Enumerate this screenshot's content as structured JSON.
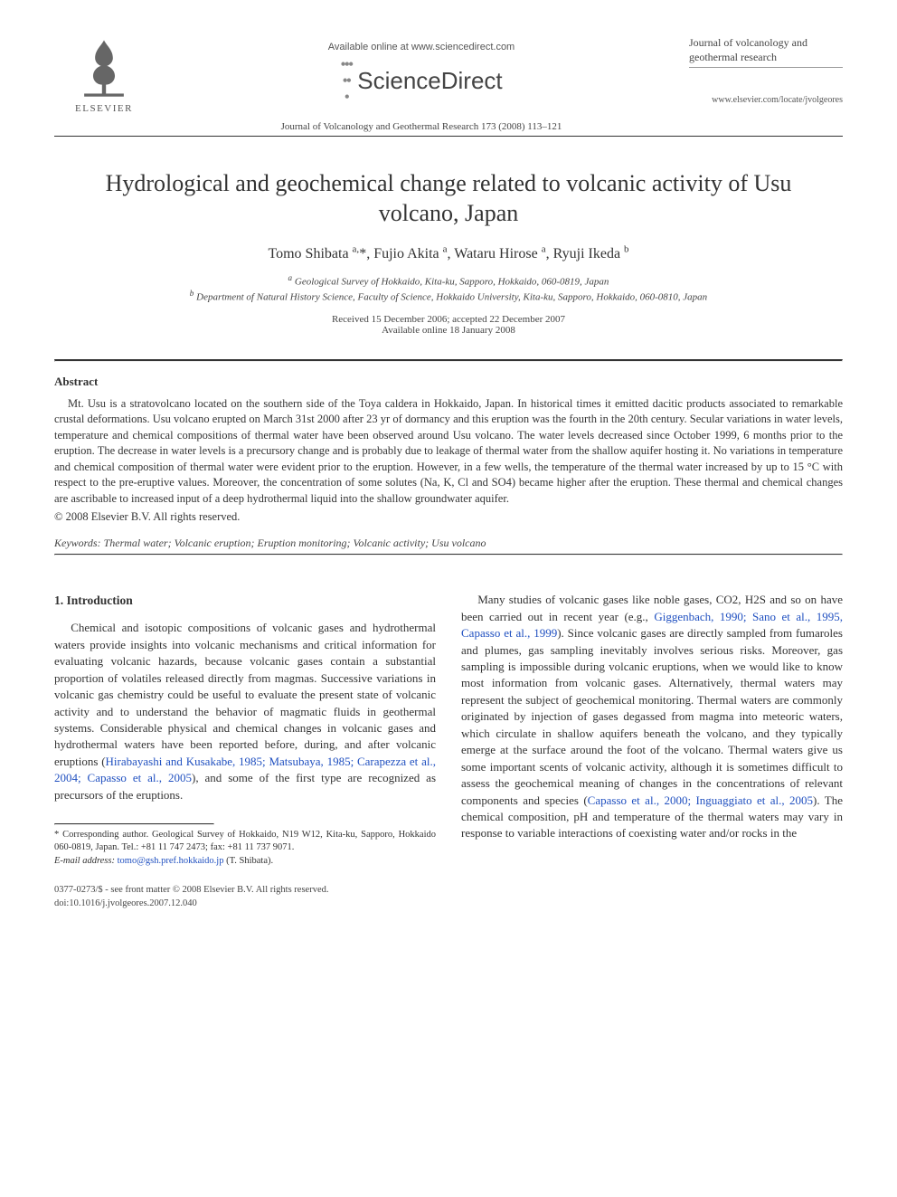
{
  "header": {
    "publisher": "ELSEVIER",
    "available_online": "Available online at www.sciencedirect.com",
    "sciencedirect": "ScienceDirect",
    "journal_ref": "Journal of Volcanology and Geothermal Research 173 (2008) 113–121",
    "journal_cover_title": "Journal of volcanology and geothermal research",
    "journal_url": "www.elsevier.com/locate/jvolgeores"
  },
  "title": "Hydrological and geochemical change related to volcanic activity of Usu volcano, Japan",
  "authors_html": "Tomo Shibata <sup>a,</sup>*, Fujio Akita <sup>a</sup>, Wataru Hirose <sup>a</sup>, Ryuji Ikeda <sup>b</sup>",
  "affiliations": {
    "a": "Geological Survey of Hokkaido, Kita-ku, Sapporo, Hokkaido, 060-0819, Japan",
    "b": "Department of Natural History Science, Faculty of Science, Hokkaido University, Kita-ku, Sapporo, Hokkaido, 060-0810, Japan"
  },
  "dates": {
    "received_accepted": "Received 15 December 2006; accepted 22 December 2007",
    "online": "Available online 18 January 2008"
  },
  "abstract_heading": "Abstract",
  "abstract_body": "Mt. Usu is a stratovolcano located on the southern side of the Toya caldera in Hokkaido, Japan. In historical times it emitted dacitic products associated to remarkable crustal deformations. Usu volcano erupted on March 31st 2000 after 23 yr of dormancy and this eruption was the fourth in the 20th century. Secular variations in water levels, temperature and chemical compositions of thermal water have been observed around Usu volcano. The water levels decreased since October 1999, 6 months prior to the eruption. The decrease in water levels is a precursory change and is probably due to leakage of thermal water from the shallow aquifer hosting it. No variations in temperature and chemical composition of thermal water were evident prior to the eruption. However, in a few wells, the temperature of the thermal water increased by up to 15 °C with respect to the pre-eruptive values. Moreover, the concentration of some solutes (Na, K, Cl and SO4) became higher after the eruption. These thermal and chemical changes are ascribable to increased input of a deep hydrothermal liquid into the shallow groundwater aquifer.",
  "copyright": "© 2008 Elsevier B.V. All rights reserved.",
  "keywords_label": "Keywords:",
  "keywords": "Thermal water; Volcanic eruption; Eruption monitoring; Volcanic activity; Usu volcano",
  "section_heading": "1. Introduction",
  "col_left_p1_a": "Chemical and isotopic compositions of volcanic gases and hydrothermal waters provide insights into volcanic mechanisms and critical information for evaluating volcanic hazards, because volcanic gases contain a substantial proportion of volatiles released directly from magmas. Successive variations in volcanic gas chemistry could be useful to evaluate the present state of volcanic activity and to understand the behavior of magmatic fluids in geothermal systems. Considerable physical and chemical changes in volcanic gases and hydrothermal waters have been reported before, during, and after volcanic eruptions (",
  "col_left_cite1": "Hirabayashi and Kusakabe, 1985; Matsubaya, 1985; Carapezza et al., 2004; Capasso et al., 2005",
  "col_left_p1_b": "), and some of the first type are recognized as precursors of the eruptions.",
  "col_right_p1_a": "Many studies of volcanic gases like noble gases, CO2, H2S and so on have been carried out in recent year (e.g., ",
  "col_right_cite1": "Giggenbach, 1990; Sano et al., 1995, Capasso et al., 1999",
  "col_right_p1_b": "). Since volcanic gases are directly sampled from fumaroles and plumes, gas sampling inevitably involves serious risks. Moreover, gas sampling is impossible during volcanic eruptions, when we would like to know most information from volcanic gases. Alternatively, thermal waters may represent the subject of geochemical monitoring. Thermal waters are commonly originated by injection of gases degassed from magma into meteoric waters, which circulate in shallow aquifers beneath the volcano, and they typically emerge at the surface around the foot of the volcano. Thermal waters give us some important scents of volcanic activity, although it is sometimes difficult to assess the geochemical meaning of changes in the concentrations of relevant components and species (",
  "col_right_cite2": "Capasso et al., 2000; Inguaggiato et al., 2005",
  "col_right_p1_c": "). The chemical composition, pH and temperature of the thermal waters may vary in response to variable interactions of coexisting water and/or rocks in the",
  "footnote": {
    "corresponding": "* Corresponding author. Geological Survey of Hokkaido, N19 W12, Kita-ku, Sapporo, Hokkaido 060-0819, Japan. Tel.: +81 11 747 2473; fax: +81 11 737 9071.",
    "email_label": "E-mail address:",
    "email": "tomo@gsh.pref.hokkaido.jp",
    "email_tail": "(T. Shibata)."
  },
  "footer": {
    "issn": "0377-0273/$ - see front matter © 2008 Elsevier B.V. All rights reserved.",
    "doi": "doi:10.1016/j.jvolgeores.2007.12.040"
  }
}
